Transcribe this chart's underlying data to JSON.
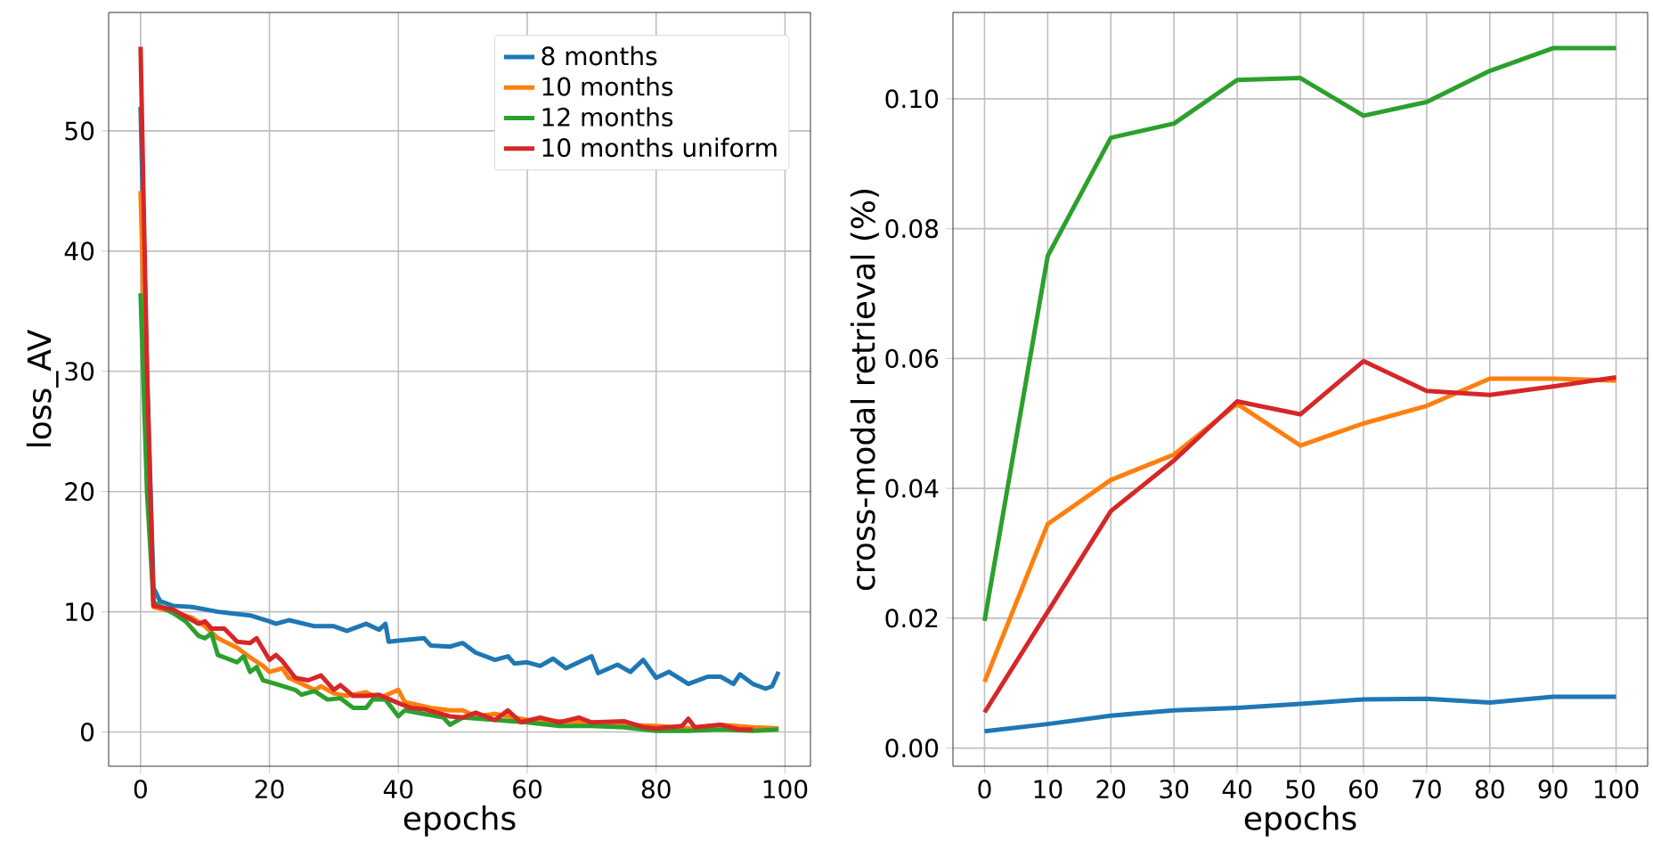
{
  "chart_data": [
    {
      "type": "line",
      "xlabel": "epochs",
      "ylabel": "loss_AV",
      "xlim": [
        -4.95,
        103.95
      ],
      "ylim": [
        -2.85,
        59.85
      ],
      "xticks": [
        0,
        20,
        40,
        60,
        80,
        100
      ],
      "yticks": [
        0,
        10,
        20,
        30,
        40,
        50
      ],
      "grid": true,
      "legend": "top right",
      "series": [
        {
          "name": "8 months",
          "color": "#1f77b4",
          "x": [
            0,
            1,
            2,
            3,
            5,
            8,
            12,
            17,
            20,
            21,
            23,
            27,
            30,
            32,
            35,
            37,
            38,
            38.5,
            40,
            44,
            45,
            48,
            50,
            52,
            55,
            57,
            58,
            60,
            62,
            64,
            66,
            70,
            71,
            74,
            76,
            78,
            80,
            82,
            85,
            88,
            90,
            92,
            93,
            95,
            97,
            98,
            99
          ],
          "values": [
            52,
            30,
            12,
            10.9,
            10.5,
            10.4,
            10.0,
            9.7,
            9.2,
            9.0,
            9.3,
            8.8,
            8.8,
            8.4,
            9.0,
            8.5,
            9.0,
            7.5,
            7.6,
            7.8,
            7.2,
            7.1,
            7.4,
            6.6,
            6.0,
            6.3,
            5.7,
            5.8,
            5.5,
            6.1,
            5.3,
            6.3,
            4.9,
            5.6,
            5.0,
            6.0,
            4.5,
            5.0,
            4.0,
            4.6,
            4.6,
            4.0,
            4.8,
            4.0,
            3.6,
            3.8,
            5.0
          ]
        },
        {
          "name": "10 months",
          "color": "#ff7f0e",
          "x": [
            0,
            1,
            2,
            5,
            8,
            10,
            12,
            15,
            17,
            19,
            20,
            22,
            23,
            25,
            27,
            28,
            30,
            32,
            35,
            37,
            40,
            41,
            45,
            48,
            50,
            52,
            55,
            58,
            60,
            65,
            70,
            75,
            80,
            85,
            90,
            95,
            99
          ],
          "values": [
            45,
            25,
            10.4,
            10.0,
            9.5,
            8.8,
            7.8,
            7.0,
            6.2,
            5.5,
            5.0,
            5.3,
            4.5,
            4.0,
            3.5,
            3.8,
            3.2,
            3.0,
            3.3,
            2.8,
            3.5,
            2.5,
            2.0,
            1.8,
            1.8,
            1.3,
            1.5,
            1.2,
            1.0,
            0.9,
            0.8,
            0.6,
            0.5,
            0.3,
            0.6,
            0.4,
            0.3
          ]
        },
        {
          "name": "12 months",
          "color": "#2ca02c",
          "x": [
            0,
            1,
            2,
            5,
            7,
            9,
            10,
            11,
            12,
            14,
            15,
            16,
            17,
            18,
            19,
            21,
            24,
            25,
            27,
            29,
            31,
            33,
            35,
            36,
            38,
            40,
            41,
            43,
            45,
            47,
            48,
            50,
            55,
            60,
            65,
            70,
            75,
            80,
            85,
            90,
            95,
            99
          ],
          "values": [
            36.5,
            20,
            10.8,
            9.9,
            9.2,
            8.0,
            7.8,
            8.2,
            6.4,
            6.0,
            5.8,
            6.3,
            5.0,
            5.4,
            4.3,
            4.0,
            3.5,
            3.1,
            3.4,
            2.7,
            2.8,
            2.0,
            2.0,
            2.7,
            2.7,
            1.3,
            1.8,
            1.6,
            1.4,
            1.2,
            0.6,
            1.2,
            1.0,
            0.8,
            0.5,
            0.5,
            0.4,
            0.1,
            0.1,
            0.2,
            0.1,
            0.2
          ]
        },
        {
          "name": "10 months uniform",
          "color": "#d62728",
          "x": [
            0,
            1,
            2,
            5,
            7,
            9,
            10,
            11,
            13,
            15,
            17,
            18,
            20,
            21,
            22,
            24,
            25,
            26,
            28,
            30,
            31,
            33,
            35,
            37,
            40,
            42,
            44,
            46,
            48,
            50,
            52,
            55,
            57,
            59,
            62,
            65,
            68,
            70,
            75,
            78,
            80,
            84,
            85,
            86,
            90,
            93,
            95
          ],
          "values": [
            57,
            30,
            10.5,
            10.2,
            9.6,
            9.0,
            9.2,
            8.6,
            8.6,
            7.5,
            7.4,
            7.8,
            6.0,
            6.4,
            5.9,
            4.5,
            4.4,
            4.3,
            4.7,
            3.5,
            3.9,
            3.0,
            3.0,
            3.1,
            2.4,
            2.0,
            1.9,
            1.6,
            1.3,
            1.2,
            1.6,
            1.0,
            1.8,
            0.8,
            1.2,
            0.8,
            1.2,
            0.8,
            0.9,
            0.4,
            0.3,
            0.5,
            1.1,
            0.4,
            0.6,
            0.2,
            0.2
          ]
        }
      ]
    },
    {
      "type": "line",
      "xlabel": "epochs",
      "ylabel": "cross-modal retrieval (%)",
      "xlim": [
        -5,
        105
      ],
      "ylim": [
        -0.0028,
        0.1133
      ],
      "xticks": [
        0,
        10,
        20,
        30,
        40,
        50,
        60,
        70,
        80,
        90,
        100
      ],
      "yticks": [
        {
          "value": 0,
          "label": "0.00"
        },
        {
          "value": 0.02,
          "label": "0.02"
        },
        {
          "value": 0.04,
          "label": "0.04"
        },
        {
          "value": 0.06,
          "label": "0.06"
        },
        {
          "value": 0.08,
          "label": "0.08"
        },
        {
          "value": 0.1,
          "label": "0.10"
        }
      ],
      "grid": true,
      "x": [
        0,
        10,
        20,
        30,
        40,
        50,
        60,
        70,
        80,
        90,
        100
      ],
      "series": [
        {
          "color": "#1f77b4",
          "values": [
            0.0026,
            0.0037,
            0.005,
            0.0058,
            0.0062,
            0.0068,
            0.0075,
            0.0076,
            0.007,
            0.0079,
            0.0079
          ]
        },
        {
          "color": "#ff7f0e",
          "values": [
            0.0102,
            0.0345,
            0.0413,
            0.0452,
            0.053,
            0.0466,
            0.05,
            0.0527,
            0.0569,
            0.0569,
            0.0566
          ]
        },
        {
          "color": "#2ca02c",
          "values": [
            0.0196,
            0.0758,
            0.094,
            0.0962,
            0.1029,
            0.1032,
            0.0974,
            0.0995,
            0.1043,
            0.1078,
            0.1078
          ]
        },
        {
          "color": "#d62728",
          "values": [
            0.0055,
            0.021,
            0.0365,
            0.0443,
            0.0534,
            0.0514,
            0.0596,
            0.055,
            0.0544,
            0.0557,
            0.0571
          ]
        }
      ]
    }
  ]
}
